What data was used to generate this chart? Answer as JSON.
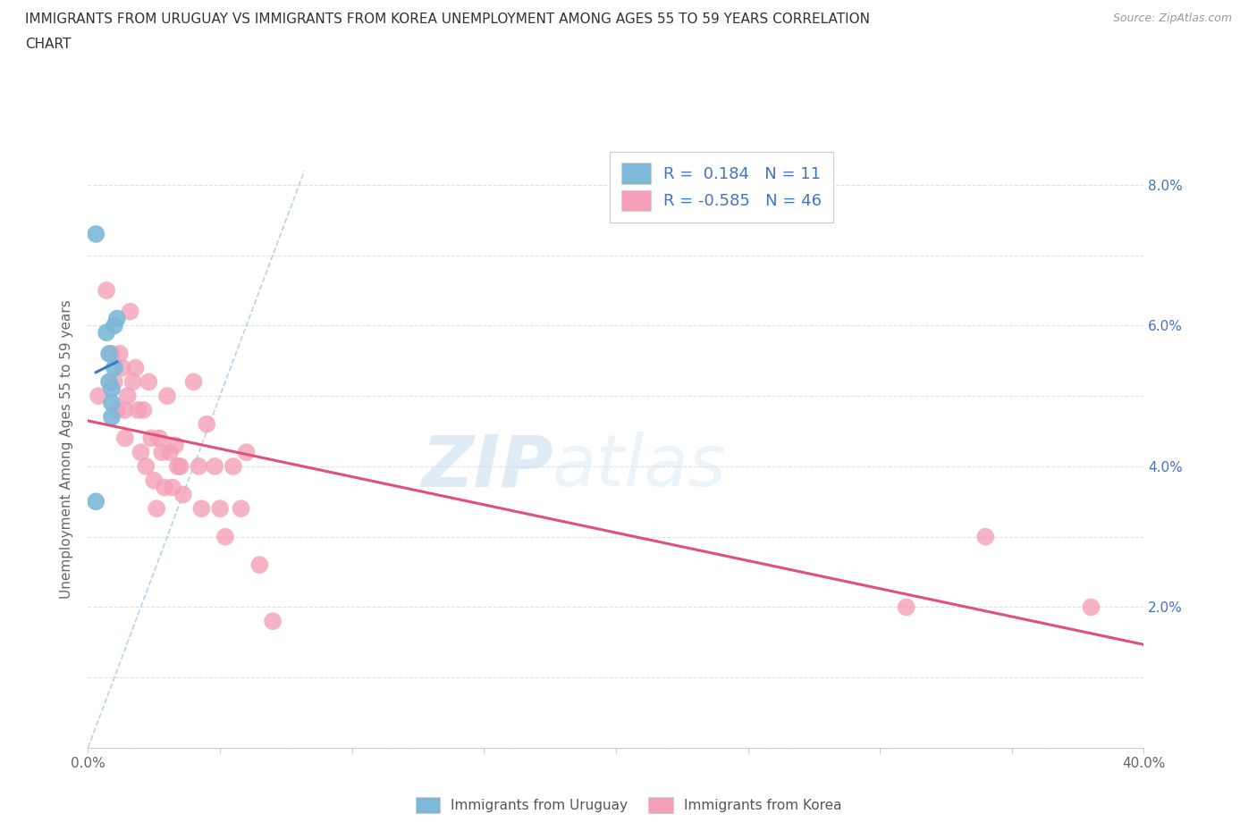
{
  "title_line1": "IMMIGRANTS FROM URUGUAY VS IMMIGRANTS FROM KOREA UNEMPLOYMENT AMONG AGES 55 TO 59 YEARS CORRELATION",
  "title_line2": "CHART",
  "source": "Source: ZipAtlas.com",
  "ylabel": "Unemployment Among Ages 55 to 59 years",
  "xlim": [
    0.0,
    0.4
  ],
  "ylim": [
    0.0,
    0.085
  ],
  "uruguay_color": "#7db8d8",
  "korea_color": "#f4a0b8",
  "trendline_uruguay_color": "#3a7abf",
  "trendline_korea_color": "#e0507a",
  "diagonal_color": "#b0d0e8",
  "uruguay_R": 0.184,
  "uruguay_N": 11,
  "korea_R": -0.585,
  "korea_N": 46,
  "legend_label_uruguay": "Immigrants from Uruguay",
  "legend_label_korea": "Immigrants from Korea",
  "watermark_zip": "ZIP",
  "watermark_atlas": "atlas",
  "uruguay_scatter_x": [
    0.003,
    0.007,
    0.008,
    0.008,
    0.009,
    0.009,
    0.009,
    0.01,
    0.01,
    0.011,
    0.003
  ],
  "uruguay_scatter_y": [
    0.073,
    0.059,
    0.056,
    0.052,
    0.051,
    0.049,
    0.047,
    0.06,
    0.054,
    0.061,
    0.035
  ],
  "korea_scatter_x": [
    0.004,
    0.007,
    0.009,
    0.01,
    0.011,
    0.012,
    0.013,
    0.014,
    0.014,
    0.015,
    0.016,
    0.017,
    0.018,
    0.019,
    0.02,
    0.021,
    0.022,
    0.023,
    0.024,
    0.025,
    0.026,
    0.027,
    0.028,
    0.029,
    0.03,
    0.031,
    0.032,
    0.033,
    0.034,
    0.035,
    0.036,
    0.04,
    0.042,
    0.043,
    0.045,
    0.048,
    0.05,
    0.052,
    0.055,
    0.058,
    0.06,
    0.065,
    0.07,
    0.31,
    0.34,
    0.38
  ],
  "korea_scatter_y": [
    0.05,
    0.065,
    0.056,
    0.052,
    0.048,
    0.056,
    0.054,
    0.048,
    0.044,
    0.05,
    0.062,
    0.052,
    0.054,
    0.048,
    0.042,
    0.048,
    0.04,
    0.052,
    0.044,
    0.038,
    0.034,
    0.044,
    0.042,
    0.037,
    0.05,
    0.042,
    0.037,
    0.043,
    0.04,
    0.04,
    0.036,
    0.052,
    0.04,
    0.034,
    0.046,
    0.04,
    0.034,
    0.03,
    0.04,
    0.034,
    0.042,
    0.026,
    0.018,
    0.02,
    0.03,
    0.02
  ],
  "background_color": "#ffffff",
  "grid_color": "#e0e0e0",
  "right_tick_color": "#4472c4",
  "legend_text_color": "#4472c4",
  "axis_text_color": "#666666"
}
